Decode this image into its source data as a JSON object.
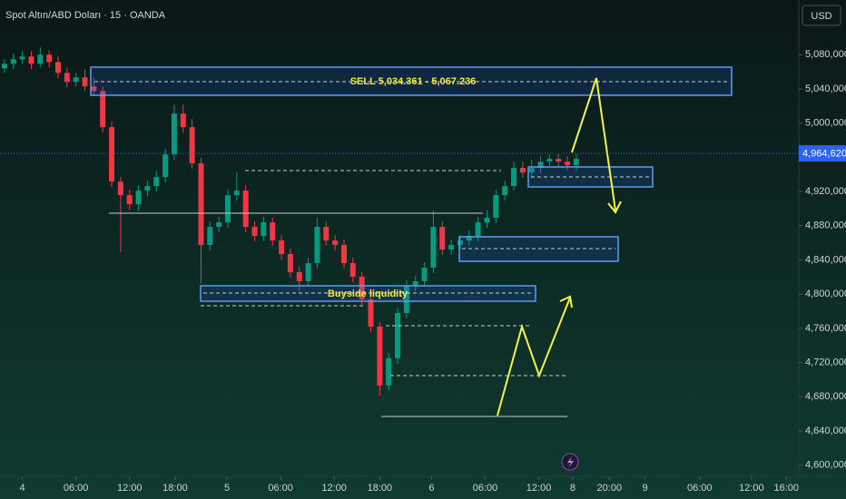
{
  "chart_data": {
    "type": "candlestick",
    "title": "Spot Altın/ABD Doları · 15 · OANDA",
    "currency": "USD",
    "annotations": {
      "sell_zone": "SELL 5,034.361 - 5,067.236",
      "buyside": "Buyside liquidity"
    },
    "last_price": {
      "value": 4964620,
      "label": "4,964,620"
    },
    "up_color": "#089981",
    "down_color": "#f23645",
    "grid": false,
    "x": [
      0,
      1,
      2,
      3,
      4,
      5,
      6,
      7,
      8,
      9,
      10,
      11,
      12,
      13,
      14,
      15,
      16,
      17,
      18,
      19,
      20,
      21,
      22,
      23,
      24,
      25,
      26,
      27,
      28,
      29,
      30,
      31,
      32,
      33,
      34,
      35,
      36,
      37,
      38,
      39,
      40,
      41,
      42,
      43,
      44,
      45,
      46,
      47,
      48,
      49,
      50,
      51,
      52,
      53,
      54,
      55,
      56,
      57,
      58,
      59,
      60,
      61,
      62,
      63,
      64
    ],
    "open": [
      5064100,
      5069400,
      5074700,
      5077900,
      5069400,
      5080000,
      5071500,
      5058800,
      5048200,
      5053500,
      5042900,
      5037600,
      4995300,
      4931700,
      4915800,
      4905200,
      4921100,
      4926400,
      4937000,
      4963500,
      5011100,
      4995300,
      4952900,
      4857500,
      4878700,
      4884000,
      4915800,
      4921100,
      4878700,
      4868100,
      4884000,
      4862800,
      4846900,
      4825700,
      4815100,
      4836300,
      4878700,
      4862800,
      4857500,
      4836300,
      4820400,
      4794000,
      4762100,
      4693300,
      4725100,
      4778000,
      4809800,
      4815100,
      4831000,
      4878700,
      4852200,
      4857500,
      4862800,
      4868100,
      4884000,
      4889300,
      4915800,
      4926400,
      4947600,
      4942300,
      4947600,
      4955000,
      4958200,
      4955000,
      4950800
    ],
    "high": [
      5074700,
      5081100,
      5084300,
      5084300,
      5088500,
      5085300,
      5077900,
      5065200,
      5058800,
      5063100,
      5053500,
      5042900,
      5001600,
      4937000,
      4922100,
      4927400,
      4932700,
      4944400,
      4969800,
      5021700,
      5021700,
      5004800,
      4959200,
      4885100,
      4890300,
      4922100,
      4942300,
      4927400,
      4885100,
      4890300,
      4889300,
      4869200,
      4853300,
      4832100,
      4842700,
      4889300,
      4885100,
      4869200,
      4863900,
      4842700,
      4825700,
      4800300,
      4767400,
      4731400,
      4784400,
      4816200,
      4821500,
      4837400,
      4897800,
      4885100,
      4863900,
      4869200,
      4874500,
      4890300,
      4897800,
      4922100,
      4932700,
      4955000,
      4955000,
      4957100,
      4961300,
      4963500,
      4963500,
      4961300,
      4963500
    ],
    "low": [
      5058800,
      5063100,
      5069400,
      5063100,
      5065200,
      5065200,
      5052500,
      5041900,
      5042900,
      5037600,
      5031300,
      4988900,
      4925300,
      4849000,
      4898800,
      4897800,
      4914700,
      4920100,
      4930600,
      4957100,
      4988900,
      4946500,
      4813000,
      4851200,
      4872300,
      4877600,
      4909400,
      4872300,
      4861800,
      4861800,
      4856500,
      4840500,
      4819400,
      4803500,
      4808800,
      4830000,
      4856500,
      4851200,
      4830000,
      4814000,
      4787600,
      4755800,
      4681600,
      4686900,
      4718700,
      4771700,
      4803500,
      4808800,
      4824700,
      4845900,
      4845900,
      4851200,
      4856500,
      4861800,
      4877600,
      4883000,
      4909400,
      4921100,
      4935900,
      4935900,
      4941200,
      4948600,
      4948600,
      4944400,
      4944400
    ],
    "close": [
      5069400,
      5074700,
      5077900,
      5069400,
      5080000,
      5071500,
      5058800,
      5048200,
      5053500,
      5042900,
      5037600,
      4995300,
      4931700,
      4915800,
      4905200,
      4921100,
      4926400,
      4937000,
      4963500,
      5011100,
      4995300,
      4952900,
      4857500,
      4878700,
      4884000,
      4915800,
      4921100,
      4878700,
      4868100,
      4884000,
      4862800,
      4846900,
      4825700,
      4815100,
      4836300,
      4878700,
      4862800,
      4857500,
      4836300,
      4820400,
      4794000,
      4762100,
      4693300,
      4725100,
      4778000,
      4809800,
      4815100,
      4831000,
      4878700,
      4852200,
      4857500,
      4862800,
      4868100,
      4884000,
      4889300,
      4915800,
      4926400,
      4947600,
      4942300,
      4947600,
      4955000,
      4958200,
      4955000,
      4950800,
      4958200
    ],
    "xlim": [
      -0.5,
      88.9
    ],
    "xticks": [
      {
        "value": 2.0,
        "label": "4"
      },
      {
        "value": 8.0,
        "label": "06:00"
      },
      {
        "value": 14.0,
        "label": "12:00"
      },
      {
        "value": 19.1,
        "label": "18:00"
      },
      {
        "value": 24.9,
        "label": "5"
      },
      {
        "value": 30.9,
        "label": "06:00"
      },
      {
        "value": 36.9,
        "label": "12:00"
      },
      {
        "value": 42.0,
        "label": "18:00"
      },
      {
        "value": 47.8,
        "label": "6"
      },
      {
        "value": 53.8,
        "label": "06:00"
      },
      {
        "value": 59.8,
        "label": "12:00"
      },
      {
        "value": 63.6,
        "label": "8"
      },
      {
        "value": 67.7,
        "label": "20:00"
      },
      {
        "value": 71.7,
        "label": "9"
      },
      {
        "value": 77.8,
        "label": "06:00"
      },
      {
        "value": 83.6,
        "label": "12:00"
      },
      {
        "value": 87.5,
        "label": "16:00"
      }
    ],
    "ylim": [
      4587000,
      5144000
    ],
    "yticks": [
      {
        "value": 5080000,
        "label": "5,080,000"
      },
      {
        "value": 5040000,
        "label": "5,040,000"
      },
      {
        "value": 5000000,
        "label": "5,000,000"
      },
      {
        "value": 4920000,
        "label": "4,920,000"
      },
      {
        "value": 4880000,
        "label": "4,880,000"
      },
      {
        "value": 4840000,
        "label": "4,840,000"
      },
      {
        "value": 4800000,
        "label": "4,800,000"
      },
      {
        "value": 4760000,
        "label": "4,760,000"
      },
      {
        "value": 4720000,
        "label": "4,720,000"
      },
      {
        "value": 4680000,
        "label": "4,680,000"
      },
      {
        "value": 4640000,
        "label": "4,640,000"
      },
      {
        "value": 4600000,
        "label": "4,600,000"
      }
    ]
  }
}
